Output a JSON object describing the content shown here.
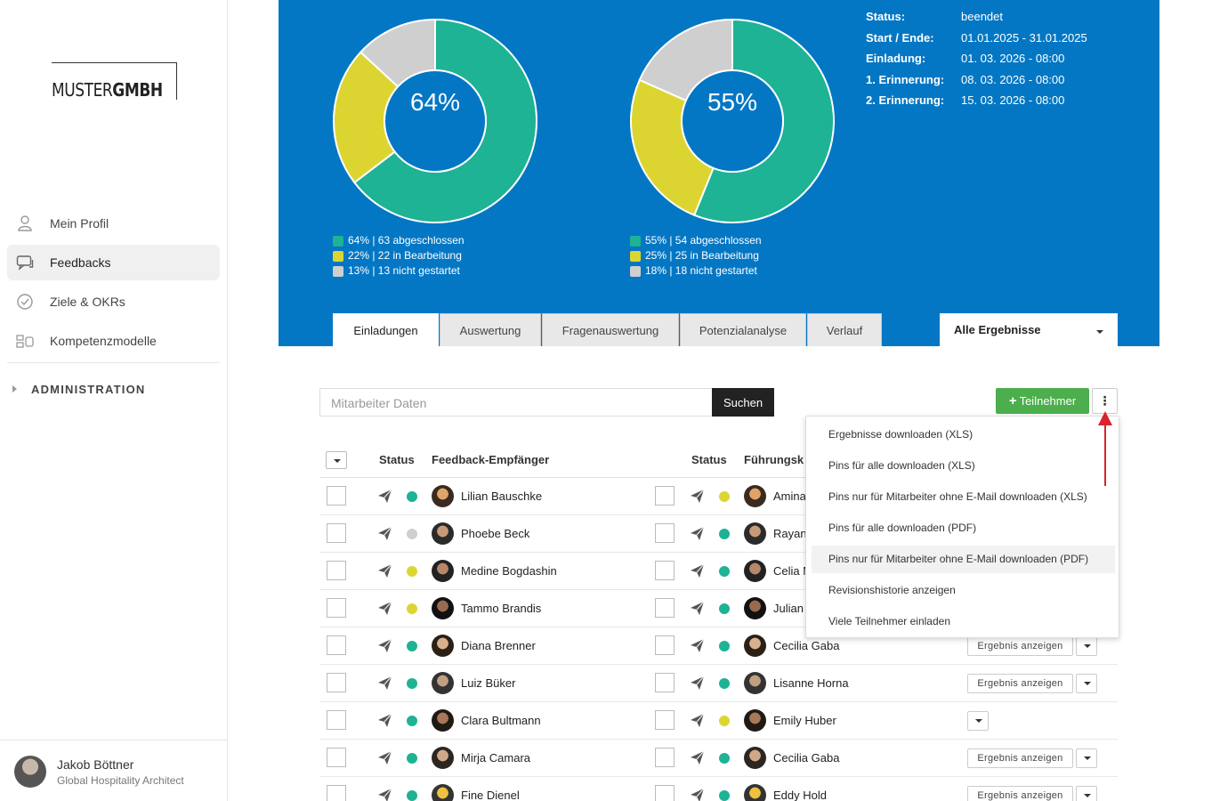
{
  "sidebar": {
    "logo": {
      "light": "MUSTER",
      "bold": "GMBH"
    },
    "items": [
      {
        "label": "Mein Profil",
        "icon": "user-icon"
      },
      {
        "label": "Feedbacks",
        "icon": "chat-icon"
      },
      {
        "label": "Ziele & OKRs",
        "icon": "check-circle-icon"
      },
      {
        "label": "Kompetenzmodelle",
        "icon": "model-icon"
      }
    ],
    "admin_label": "ADMINISTRATION",
    "user": {
      "name": "Jakob Böttner",
      "role": "Global Hospitality Architect"
    }
  },
  "colors": {
    "done": "#1db394",
    "in_progress": "#dcd531",
    "not_started": "#cfcfcf",
    "hero_bg": "#0477c4"
  },
  "donuts": [
    {
      "center_label": "64%",
      "segments": [
        {
          "key": "done",
          "percent": 64
        },
        {
          "key": "in_progress",
          "percent": 22
        },
        {
          "key": "not_started",
          "percent": 13
        }
      ],
      "legend": [
        "64% | 63 abgeschlossen",
        "22% | 22 in Bearbeitung",
        "13% | 13 nicht gestartet"
      ]
    },
    {
      "center_label": "55%",
      "segments": [
        {
          "key": "done",
          "percent": 55
        },
        {
          "key": "in_progress",
          "percent": 25
        },
        {
          "key": "not_started",
          "percent": 18
        }
      ],
      "legend": [
        "55% | 54 abgeschlossen",
        "25% | 25 in Bearbeitung",
        "18% | 18 nicht gestartet"
      ]
    }
  ],
  "info": [
    {
      "key": "Status:",
      "value": "beendet"
    },
    {
      "key": "Start / Ende:",
      "value": "01.01.2025 - 31.01.2025"
    },
    {
      "key": "Einladung:",
      "value": "01. 03. 2026 - 08:00"
    },
    {
      "key": "1. Erinnerung:",
      "value": "08. 03. 2026 - 08:00"
    },
    {
      "key": "2. Erinnerung:",
      "value": "15. 03. 2026 - 08:00"
    }
  ],
  "tabs": [
    "Einladungen",
    "Auswertung",
    "Fragenauswertung",
    "Potenzialanalyse",
    "Verlauf"
  ],
  "filter_label": "Alle Ergebnisse",
  "search": {
    "placeholder": "Mitarbeiter Daten",
    "button": "Suchen"
  },
  "add_button": "Teilnehmer",
  "kebab_label": "⋮",
  "table": {
    "headers": {
      "status": "Status",
      "recipient": "Feedback-Empfänger",
      "status2": "Status",
      "manager": "Führungsk"
    },
    "result_label": "Ergebnis anzeigen",
    "rows": [
      {
        "recipient": "Lilian Bauschke",
        "s1": "done",
        "manager": "Amina",
        "s2": "in_progress",
        "result": "none"
      },
      {
        "recipient": "Phoebe Beck",
        "s1": "not_started",
        "manager": "Rayan",
        "s2": "done",
        "result": "none"
      },
      {
        "recipient": "Medine Bogdashin",
        "s1": "in_progress",
        "manager": "Celia M",
        "s2": "done",
        "result": "none"
      },
      {
        "recipient": "Tammo Brandis",
        "s1": "in_progress",
        "manager": "Julian S",
        "s2": "done",
        "result": "none"
      },
      {
        "recipient": "Diana Brenner",
        "s1": "done",
        "manager": "Cecilia Gaba",
        "s2": "done",
        "result": "full"
      },
      {
        "recipient": "Luiz Büker",
        "s1": "done",
        "manager": "Lisanne Horna",
        "s2": "done",
        "result": "full"
      },
      {
        "recipient": "Clara Bultmann",
        "s1": "done",
        "manager": "Emily Huber",
        "s2": "in_progress",
        "result": "caret"
      },
      {
        "recipient": "Mirja Camara",
        "s1": "done",
        "manager": "Cecilia Gaba",
        "s2": "done",
        "result": "full"
      },
      {
        "recipient": "Fine Dienel",
        "s1": "done",
        "manager": "Eddy Hold",
        "s2": "done",
        "result": "full"
      }
    ]
  },
  "menu": {
    "items": [
      "Ergebnisse downloaden (XLS)",
      "Pins für alle downloaden (XLS)",
      "Pins nur für Mitarbeiter ohne E-Mail downloaden (XLS)",
      "Pins für alle downloaden (PDF)",
      "Pins nur für Mitarbeiter ohne E-Mail downloaden (PDF)",
      "Revisionshistorie anzeigen",
      "Viele Teilnehmer einladen"
    ],
    "highlighted": 4
  }
}
